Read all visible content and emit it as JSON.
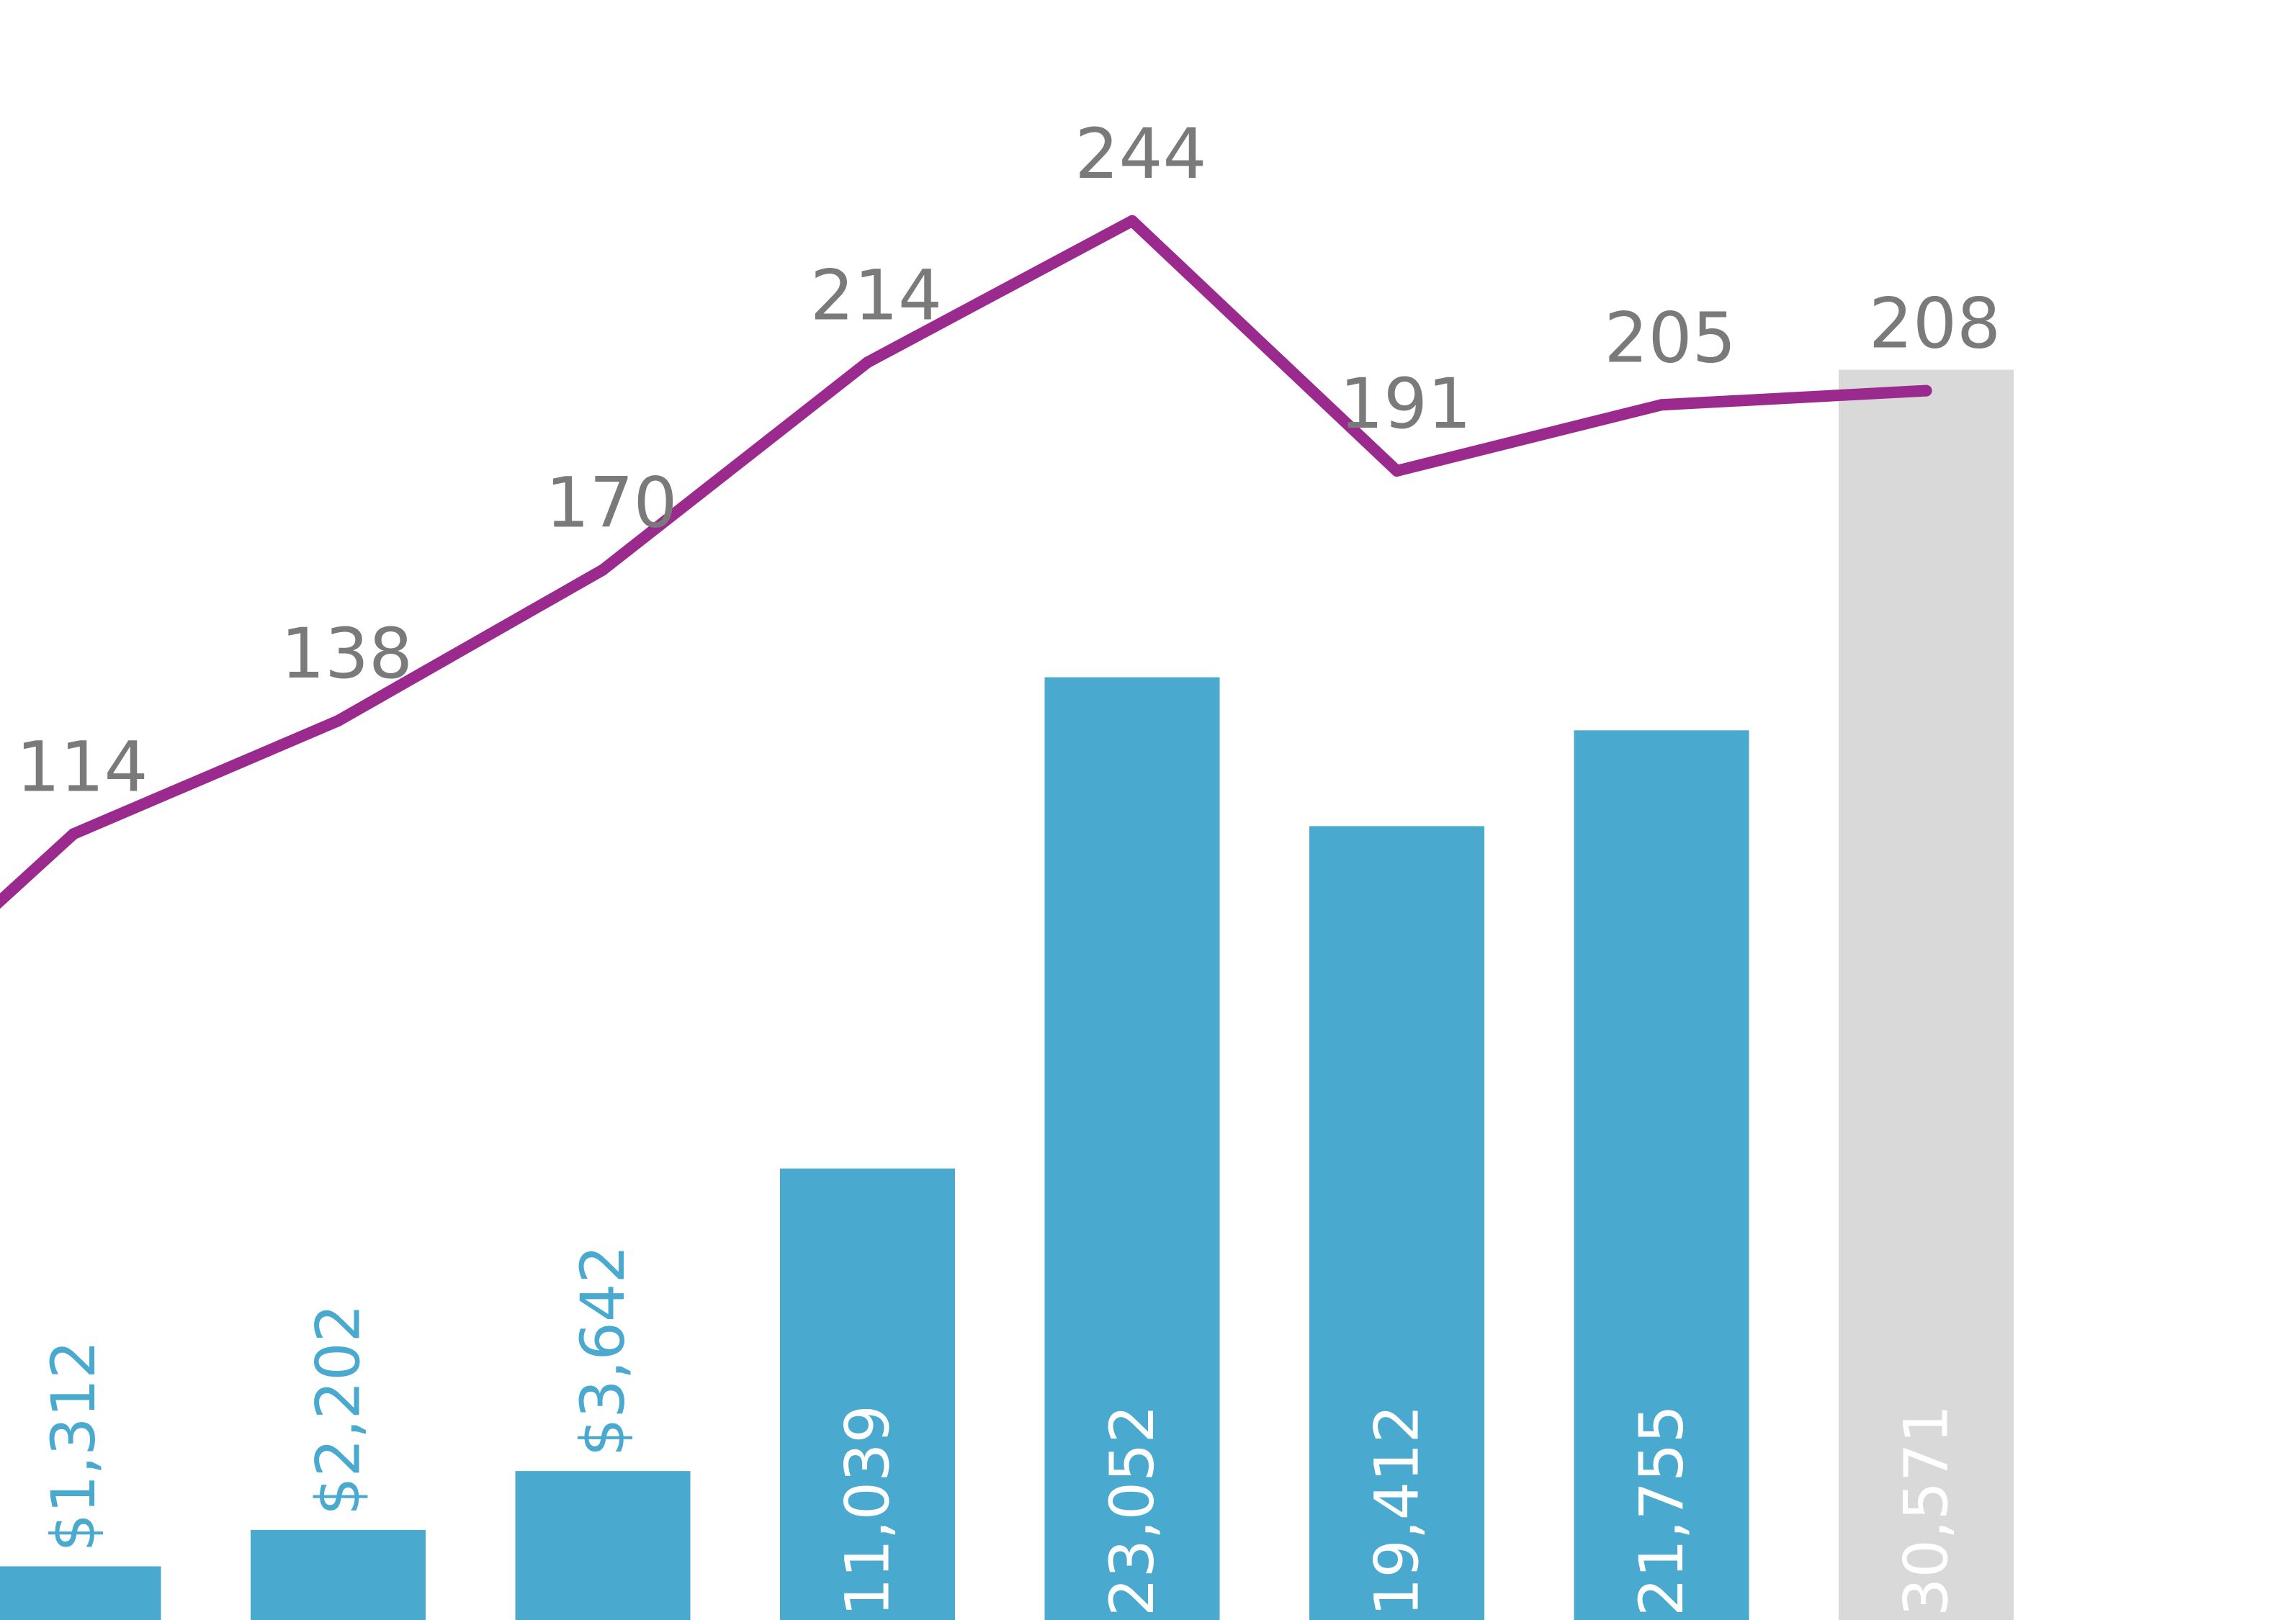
{
  "colors": {
    "bar": "#4aa9cf",
    "bar_projected": "#d9d9d9",
    "line": "#9b2a8e",
    "line_label": "#7a7a7a",
    "bar_label_inside": "#ffffff",
    "bar_label_outside": "#4aa9cf",
    "bar_label_projected": "#ffffff"
  },
  "chart_data": {
    "type": "bar",
    "bar_series": {
      "values": [
        1312,
        2202,
        3642,
        11039,
        23052,
        19412,
        21755,
        30571
      ],
      "labels": [
        "$1,312",
        "$2,202",
        "$3,642",
        "11,039",
        "23,052",
        "19,412",
        "21,755",
        "30,571"
      ],
      "projected": [
        false,
        false,
        false,
        false,
        false,
        false,
        false,
        true
      ]
    },
    "line_series": {
      "values": [
        114,
        138,
        170,
        214,
        244,
        191,
        205,
        208
      ],
      "labels": [
        "114",
        "138",
        "170",
        "214",
        "244",
        "191",
        "205",
        "208"
      ]
    }
  }
}
